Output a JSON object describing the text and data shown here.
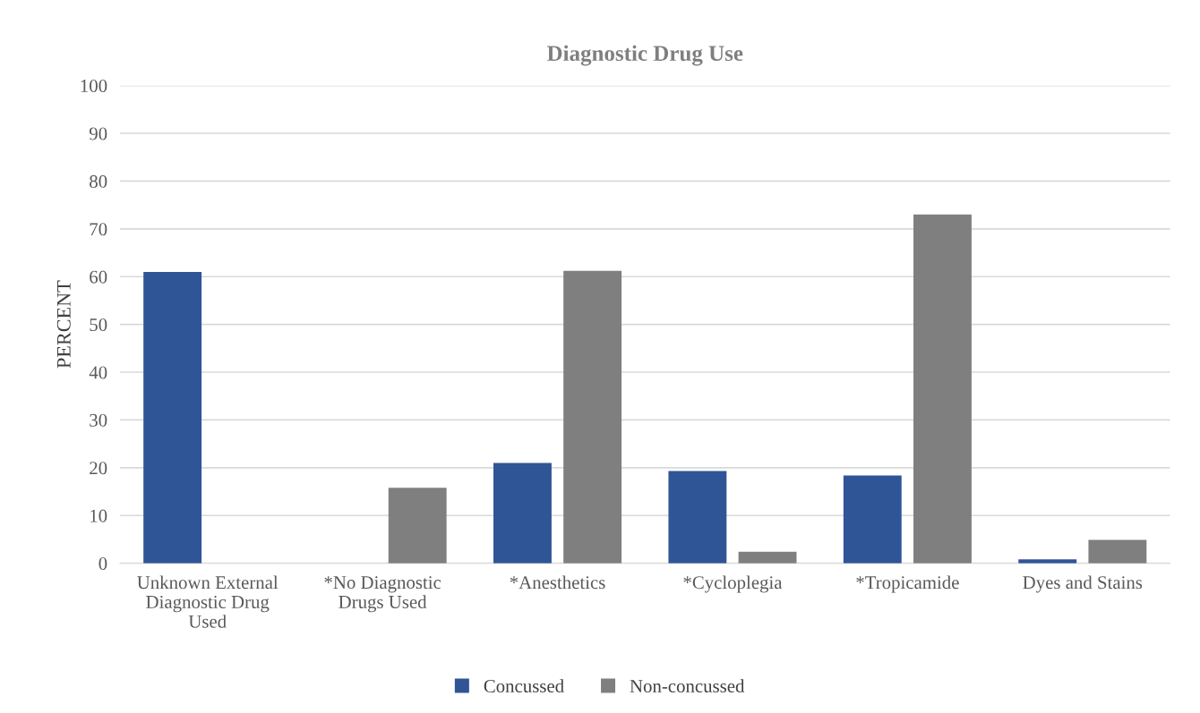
{
  "chart_data": {
    "type": "bar",
    "title": "Diagnostic Drug Use",
    "ylabel": "PERCENT",
    "categories": [
      "Unknown External\nDiagnostic Drug\nUsed",
      "*No Diagnostic\nDrugs Used",
      "*Anesthetics",
      "*Cycloplegia",
      "*Tropicamide",
      "Dyes and Stains"
    ],
    "series": [
      {
        "name": "Concussed",
        "color": "#2f5597",
        "values": [
          61,
          0,
          21,
          19.3,
          18.4,
          0.8
        ]
      },
      {
        "name": "Non-concussed",
        "color": "#7f7f7f",
        "values": [
          0,
          15.8,
          61.2,
          2.4,
          73,
          4.9
        ]
      }
    ],
    "ylim": [
      0,
      100
    ],
    "yticks": [
      0,
      10,
      20,
      30,
      40,
      50,
      60,
      70,
      80,
      90,
      100
    ],
    "grid": "y",
    "legend": "bottom"
  }
}
